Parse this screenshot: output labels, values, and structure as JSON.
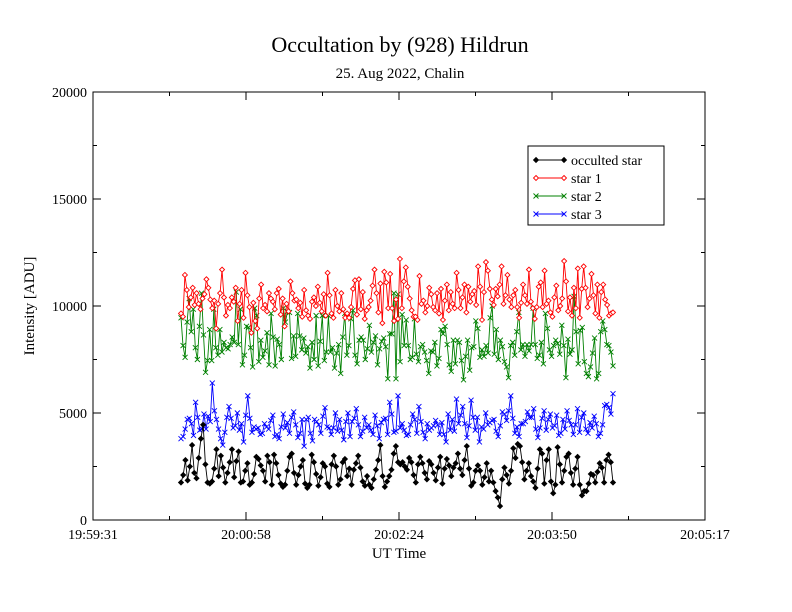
{
  "chart_data": {
    "type": "line",
    "title": "Occultation by (928) Hildrun",
    "subtitle": "25. Aug 2022, Chalin",
    "xlabel": "UT Time",
    "ylabel": "Intensity [ADU]",
    "x_ticks": [
      "19:59:31",
      "20:00:58",
      "20:02:24",
      "20:03:50",
      "20:05:17"
    ],
    "y_ticks": [
      "0",
      "5000",
      "10000",
      "15000",
      "20000"
    ],
    "ylim": [
      0,
      20000
    ],
    "legend_position": "top-right",
    "grid": false,
    "series": [
      {
        "name": "occulted star",
        "color": "#000000",
        "marker": "diamond",
        "values": [
          1750,
          2100,
          2800,
          1850,
          2500,
          3500,
          2200,
          1950,
          2900,
          3800,
          4450,
          2600,
          1750,
          1700,
          1800,
          2400,
          3300,
          2050,
          3000,
          2450,
          1750,
          2200,
          2700,
          3300,
          2000,
          2750,
          3200,
          1750,
          1800,
          2300,
          2650,
          1650,
          1750,
          2150,
          2950,
          2850,
          2550,
          2300,
          1800,
          3000,
          2700,
          1650,
          3050,
          2650,
          2100,
          1700,
          1550,
          1650,
          2300,
          2950,
          3100,
          2200,
          1650,
          2100,
          2500,
          2800,
          1700,
          1500,
          1650,
          3050,
          2700,
          2150,
          1600,
          2000,
          2650,
          2500,
          1700,
          1550,
          2600,
          3000,
          2500,
          1650,
          1900,
          2700,
          2850,
          2050,
          2400,
          1650,
          2350,
          2650,
          3000,
          2450,
          1800,
          1600,
          2050,
          1650,
          1500,
          1900,
          2350,
          2800,
          3500,
          2050,
          1550,
          1800,
          2050,
          2350,
          3100,
          3450,
          2700,
          2600,
          2700,
          2500,
          2350,
          2900,
          2700,
          2100,
          1750,
          2600,
          2950,
          2650,
          2200,
          1900,
          2750,
          2600,
          2200,
          1850,
          2450,
          2950,
          1700,
          2400,
          2850,
          2550,
          2050,
          2450,
          2650,
          3100,
          2400,
          2100,
          2800,
          3450,
          2400,
          1600,
          1750,
          2300,
          2550,
          2300,
          1650,
          2000,
          2650,
          1800,
          2300,
          1750,
          1350,
          1050,
          650,
          1900,
          2450,
          2100,
          1700,
          2300,
          3350,
          2900,
          3550,
          3450,
          2700,
          1900,
          2300,
          2650,
          2050,
          1800,
          1500,
          2400,
          3300,
          3100,
          1700,
          2800,
          3300,
          1800,
          1250,
          1650,
          3400,
          2600,
          1750,
          2300,
          2950,
          3100,
          2200,
          1650,
          2400,
          2950,
          1650,
          1150,
          1350,
          1350,
          1700,
          2150,
          2100,
          1750,
          2250,
          2650,
          2450,
          1750,
          2800,
          3050,
          2700,
          1750
        ]
      },
      {
        "name": "star 1",
        "color": "#ff0000",
        "marker": "diamond",
        "values": [
          9650,
          9500,
          11450,
          10750,
          9950,
          10400,
          10850,
          10050,
          10600,
          10100,
          9850,
          10350,
          10550,
          11250,
          10850,
          10300,
          9900,
          10250,
          8950,
          10100,
          10600,
          11700,
          10400,
          9550,
          10050,
          9900,
          10400,
          10200,
          10850,
          9300,
          10100,
          10750,
          9450,
          11550,
          10500,
          9950,
          8750,
          10150,
          9300,
          8950,
          10350,
          11000,
          9900,
          10050,
          9750,
          10600,
          10350,
          10200,
          9850,
          10600,
          10800,
          9600,
          10350,
          9050,
          10100,
          9750,
          11150,
          10600,
          10250,
          10300,
          9900,
          10150,
          9500,
          10750,
          9800,
          9550,
          9400,
          10200,
          10400,
          10000,
          10900,
          10150,
          9750,
          10550,
          9550,
          11550,
          10500,
          9650,
          9450,
          10750,
          10000,
          9750,
          10600,
          9850,
          9450,
          9650,
          9450,
          9950,
          10800,
          11200,
          9600,
          11250,
          9850,
          10650,
          9400,
          9800,
          9950,
          10250,
          10950,
          11700,
          10600,
          9700,
          11050,
          9200,
          11600,
          11100,
          9900,
          11500,
          9900,
          9300,
          10300,
          9400,
          12200,
          9900,
          11150,
          11800,
          10900,
          10350,
          9800,
          9500,
          9500,
          9350,
          11400,
          10100,
          10250,
          9700,
          10000,
          10850,
          10550,
          9950,
          9800,
          10600,
          9650,
          10800,
          9350,
          10250,
          11000,
          9800,
          10650,
          10100,
          9900,
          11550,
          10750,
          9900,
          10400,
          11000,
          9700,
          10900,
          10200,
          10550,
          10700,
          10050,
          11850,
          10900,
          9350,
          10650,
          12050,
          11650,
          10800,
          10300,
          10050,
          10800,
          10450,
          11000,
          11850,
          10100,
          10500,
          11450,
          10300,
          9950,
          10500,
          10750,
          9950,
          9450,
          10150,
          11000,
          10500,
          10100,
          11700,
          10200,
          9900,
          9400,
          9950,
          10900,
          11100,
          9950,
          11650,
          10100,
          10250,
          9700,
          9500,
          10400,
          10950,
          9800,
          10000,
          10350,
          12100,
          11150,
          9750,
          10400,
          9550,
          10850,
          9900,
          11750,
          9450,
          10800,
          11850,
          10850,
          9950,
          10350,
          11500,
          10500,
          9650,
          11000,
          9450,
          10650,
          11000,
          10300,
          10050,
          9550,
          9650,
          9700
        ]
      },
      {
        "name": "star 2",
        "color": "#008000",
        "marker": "x",
        "values": [
          9450,
          8150,
          7600,
          9250,
          10350,
          8800,
          9850,
          8050,
          7500,
          9050,
          10600,
          8650,
          6900,
          7450,
          8900,
          7450,
          9850,
          8050,
          7700,
          8900,
          7850,
          8300,
          8050,
          8000,
          8200,
          8550,
          8300,
          10650,
          8200,
          9850,
          7250,
          7700,
          9050,
          9000,
          8050,
          7150,
          9900,
          9550,
          7400,
          8400,
          7600,
          7900,
          8750,
          7250,
          9650,
          8550,
          7200,
          8450,
          8200,
          7500,
          9900,
          9250,
          9750,
          9700,
          7550,
          8600,
          7650,
          9650,
          8600,
          7950,
          8500,
          7800,
          8100,
          7100,
          8300,
          7500,
          9550,
          7200,
          8350,
          9550,
          7450,
          7850,
          9550,
          7850,
          8050,
          7100,
          7800,
          8200,
          6850,
          8550,
          9650,
          7700,
          8150,
          9400,
          9800,
          7700,
          7300,
          8400,
          8550,
          8400,
          7500,
          8000,
          9100,
          7850,
          8300,
          8600,
          7250,
          8000,
          8350,
          8500,
          8100,
          6600,
          8700,
          8700,
          10600,
          6600,
          10550,
          7400,
          9600,
          8150,
          9350,
          8150,
          7500,
          7600,
          9400,
          7750,
          7400,
          8100,
          8200,
          7850,
          7450,
          6850,
          7900,
          7850,
          8300,
          7200,
          7550,
          8900,
          8700,
          9050,
          8200,
          7250,
          6950,
          8400,
          7300,
          8400,
          8300,
          7450,
          6550,
          7650,
          8400,
          7000,
          8050,
          8100,
          9300,
          8950,
          7600,
          7950,
          7650,
          8150,
          7800,
          9450,
          10000,
          7750,
          8900,
          7500,
          8400,
          8100,
          7400,
          7150,
          6650,
          8150,
          8300,
          7700,
          8800,
          9700,
          7950,
          8200,
          7650,
          8200,
          7900,
          8200,
          9900,
          8200,
          7550,
          7700,
          8300,
          7300,
          9650,
          8950,
          7950,
          7650,
          8150,
          8400,
          8250,
          7750,
          9100,
          8150,
          6650,
          8450,
          7750,
          7950,
          10450,
          8800,
          7300,
          8850,
          9000,
          7400,
          6850,
          6700,
          7150,
          7800,
          8500,
          6600,
          6850,
          8800,
          9300,
          8900,
          8200,
          8150,
          7850,
          7200
        ]
      },
      {
        "name": "star 3",
        "color": "#0000ff",
        "marker": "x",
        "values": [
          3800,
          3900,
          4250,
          4700,
          4750,
          4500,
          3950,
          5500,
          4800,
          4200,
          4250,
          4950,
          4250,
          4850,
          4600,
          6400,
          5100,
          4700,
          4250,
          3800,
          3500,
          4100,
          4800,
          5300,
          4750,
          4300,
          4400,
          5000,
          4200,
          4500,
          3650,
          4900,
          5800,
          4750,
          4100,
          4350,
          4250,
          4300,
          4000,
          4050,
          4500,
          4350,
          4250,
          4650,
          4900,
          3900,
          4000,
          3800,
          4350,
          4950,
          4300,
          4550,
          4050,
          4800,
          5050,
          4450,
          3850,
          4050,
          4700,
          3450,
          4700,
          4800,
          4050,
          3700,
          4700,
          4600,
          4450,
          4050,
          4850,
          5250,
          4350,
          4300,
          4000,
          4300,
          5000,
          4150,
          4700,
          4200,
          3750,
          4600,
          5000,
          3900,
          4600,
          4750,
          5200,
          4450,
          3900,
          4150,
          4800,
          4300,
          4450,
          4200,
          4000,
          4900,
          4400,
          3800,
          4550,
          4700,
          4750,
          4000,
          5500,
          4950,
          4100,
          4150,
          5800,
          4300,
          4500,
          4200,
          3950,
          4000,
          4450,
          4950,
          4700,
          4050,
          5300,
          4600,
          4100,
          3800,
          4500,
          4200,
          4300,
          4400,
          4650,
          4450,
          4000,
          4550,
          4000,
          3650,
          4950,
          4200,
          4700,
          4150,
          5650,
          4500,
          4900,
          5300,
          4500,
          3850,
          4400,
          5600,
          4800,
          4200,
          4800,
          3650,
          4350,
          4250,
          5000,
          4450,
          4550,
          4650,
          4700,
          4150,
          3900,
          4400,
          5050,
          4950,
          4650,
          5100,
          5800,
          4750,
          4050,
          4350,
          3900,
          4500,
          4500,
          4600,
          5050,
          4800,
          4800,
          5200,
          4250,
          3850,
          4300,
          4750,
          5100,
          4200,
          4700,
          4950,
          4300,
          4400,
          4900,
          3950,
          4050,
          4700,
          4250,
          5100,
          4650,
          4450,
          4000,
          4450,
          5200,
          4100,
          4800,
          5000,
          4250,
          4050,
          4550,
          4300,
          4850,
          4500,
          3900,
          4050,
          4450,
          5350,
          5400,
          5250,
          4950,
          5900
        ]
      }
    ]
  }
}
